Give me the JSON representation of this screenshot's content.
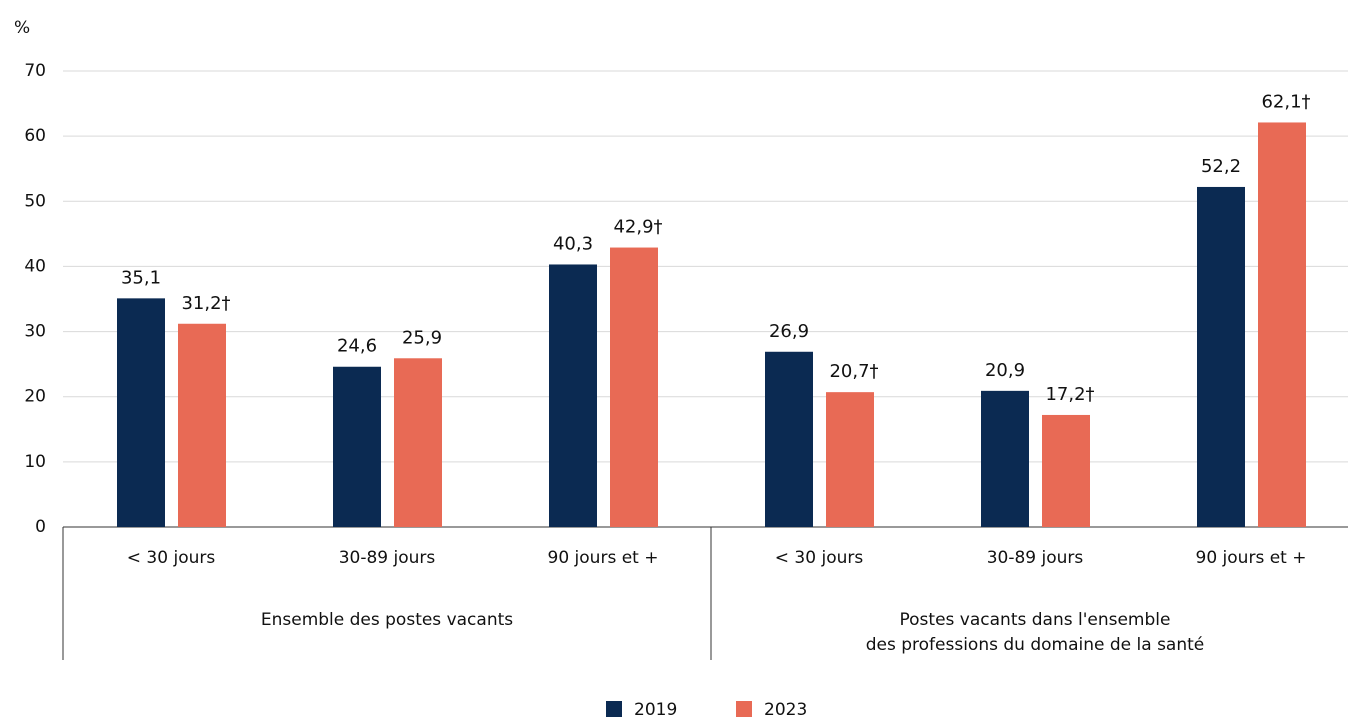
{
  "chart_data": {
    "type": "bar",
    "y_label": "%",
    "categories": [
      "< 30 jours",
      "30-89 jours",
      "90 jours et +",
      "< 30 jours",
      "30-89 jours",
      "90 jours et +"
    ],
    "groups": [
      [
        "Ensemble des postes vacants"
      ],
      [
        "Postes vacants dans l'ensemble",
        "des professions du domaine de la santé"
      ]
    ],
    "series": [
      {
        "name": "2019",
        "color": "#0b2a52",
        "values": [
          35.1,
          24.6,
          40.3,
          26.9,
          20.9,
          52.2
        ],
        "value_labels": [
          "35,1",
          "24,6",
          "40,3",
          "26,9",
          "20,9",
          "52,2"
        ]
      },
      {
        "name": "2023",
        "color": "#e86a55",
        "values": [
          31.2,
          25.9,
          42.9,
          20.7,
          17.2,
          62.1
        ],
        "value_labels": [
          "31,2†",
          "25,9",
          "42,9†",
          "20,7†",
          "17,2†",
          "62,1†"
        ]
      }
    ],
    "ylim": [
      0,
      70
    ],
    "yticks": [
      0,
      10,
      20,
      30,
      40,
      50,
      60,
      70
    ],
    "grid": true,
    "legend": "bottom"
  }
}
